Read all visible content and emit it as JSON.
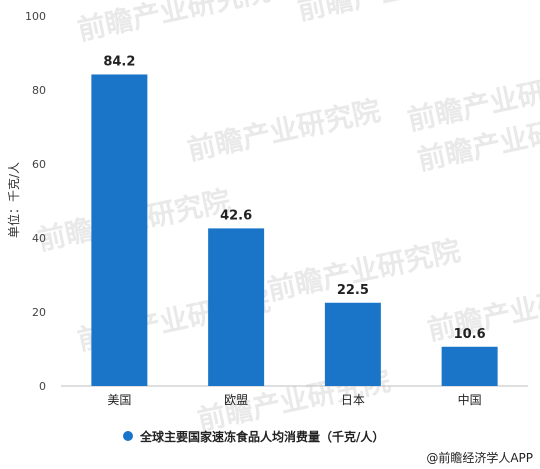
{
  "chart_data": {
    "type": "bar",
    "categories": [
      "美国",
      "欧盟",
      "日本",
      "中国"
    ],
    "values": [
      84.2,
      42.6,
      22.5,
      10.6
    ],
    "data_labels": [
      "84.2",
      "42.6",
      "22.5",
      "10.6"
    ],
    "ylabel": "单位：千克/人",
    "ylim": [
      0,
      100
    ],
    "yticks": [
      "0",
      "20",
      "40",
      "60",
      "80",
      "100"
    ],
    "grid": false,
    "bar_color": "#1a75c9",
    "legend": {
      "label": "全球主要国家速冻食品人均消费量（千克/人）",
      "placement": "bottom-center"
    }
  },
  "source": "@前瞻经济学人APP",
  "watermark": "前瞻产业研究院"
}
